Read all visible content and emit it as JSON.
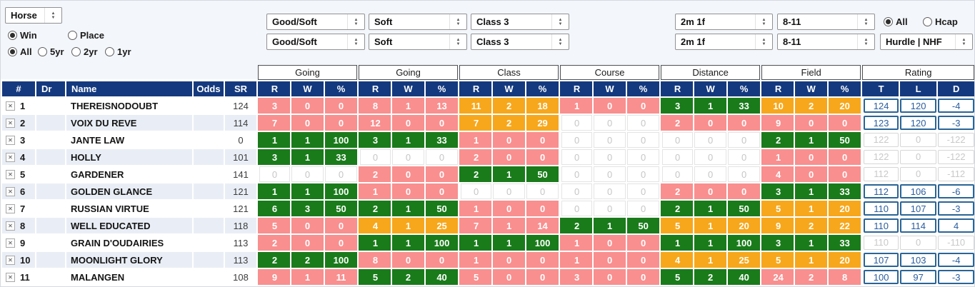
{
  "colors": {
    "navy": "#14397e",
    "green": "#1a7b1b",
    "orange": "#f7a71c",
    "pink": "#f98f8f",
    "stripe": "#e9eef6"
  },
  "toolbar": {
    "entity_select": "Horse",
    "bet_type": {
      "win": "Win",
      "place": "Place",
      "selected": "Win"
    },
    "age": {
      "all": "All",
      "y5": "5yr",
      "y2": "2yr",
      "y1": "1yr",
      "selected": "All"
    },
    "row1": {
      "going_a": "Good/Soft",
      "going_b": "Soft",
      "class": "Class 3",
      "distance": "2m 1f",
      "field": "8-11"
    },
    "row2": {
      "going_a": "Good/Soft",
      "going_b": "Soft",
      "class": "Class 3",
      "distance": "2m 1f",
      "field": "8-11",
      "race_type": "Hurdle | NHF"
    },
    "scope": {
      "all": "All",
      "hcap": "Hcap",
      "selected": "All"
    }
  },
  "table": {
    "group_headers": [
      "Going",
      "Going",
      "Class",
      "Course",
      "Distance",
      "Field",
      "Rating"
    ],
    "left_headers": {
      "num": "#",
      "dr": "Dr",
      "name": "Name",
      "odds": "Odds",
      "sr": "SR"
    },
    "stat_subheaders": [
      "R",
      "W",
      "%"
    ],
    "rating_subheaders": [
      "T",
      "L",
      "D"
    ],
    "remove_icon": "✕",
    "rows": [
      {
        "num": "1",
        "dr": "",
        "name": "THEREISNODOUBT",
        "odds": "",
        "sr": "124",
        "stats": [
          [
            3,
            0,
            0,
            "p"
          ],
          [
            8,
            1,
            13,
            "p"
          ],
          [
            11,
            2,
            18,
            "o"
          ],
          [
            1,
            0,
            0,
            "p"
          ],
          [
            3,
            1,
            33,
            "g"
          ],
          [
            10,
            2,
            20,
            "o"
          ]
        ],
        "rating": {
          "t": 124,
          "l": 120,
          "d": -4,
          "active": true
        }
      },
      {
        "num": "2",
        "dr": "",
        "name": "VOIX DU REVE",
        "odds": "",
        "sr": "114",
        "stats": [
          [
            7,
            0,
            0,
            "p"
          ],
          [
            12,
            0,
            0,
            "p"
          ],
          [
            7,
            2,
            29,
            "o"
          ],
          [
            0,
            0,
            0,
            "e"
          ],
          [
            2,
            0,
            0,
            "p"
          ],
          [
            9,
            0,
            0,
            "p"
          ]
        ],
        "rating": {
          "t": 123,
          "l": 120,
          "d": -3,
          "active": true
        }
      },
      {
        "num": "3",
        "dr": "",
        "name": "JANTE LAW",
        "odds": "",
        "sr": "0",
        "stats": [
          [
            1,
            1,
            100,
            "g"
          ],
          [
            3,
            1,
            33,
            "g"
          ],
          [
            1,
            0,
            0,
            "p"
          ],
          [
            0,
            0,
            0,
            "e"
          ],
          [
            0,
            0,
            0,
            "e"
          ],
          [
            2,
            1,
            50,
            "g"
          ]
        ],
        "rating": {
          "t": 122,
          "l": 0,
          "d": -122,
          "active": false
        }
      },
      {
        "num": "4",
        "dr": "",
        "name": "HOLLY",
        "odds": "",
        "sr": "101",
        "stats": [
          [
            3,
            1,
            33,
            "g"
          ],
          [
            0,
            0,
            0,
            "e"
          ],
          [
            2,
            0,
            0,
            "p"
          ],
          [
            0,
            0,
            0,
            "e"
          ],
          [
            0,
            0,
            0,
            "e"
          ],
          [
            1,
            0,
            0,
            "p"
          ]
        ],
        "rating": {
          "t": 122,
          "l": 0,
          "d": -122,
          "active": false
        }
      },
      {
        "num": "5",
        "dr": "",
        "name": "GARDENER",
        "odds": "",
        "sr": "141",
        "stats": [
          [
            0,
            0,
            0,
            "e"
          ],
          [
            2,
            0,
            0,
            "p"
          ],
          [
            2,
            1,
            50,
            "g"
          ],
          [
            0,
            0,
            0,
            "e"
          ],
          [
            0,
            0,
            0,
            "e"
          ],
          [
            4,
            0,
            0,
            "p"
          ]
        ],
        "rating": {
          "t": 112,
          "l": 0,
          "d": -112,
          "active": false
        }
      },
      {
        "num": "6",
        "dr": "",
        "name": "GOLDEN GLANCE",
        "odds": "",
        "sr": "121",
        "stats": [
          [
            1,
            1,
            100,
            "g"
          ],
          [
            1,
            0,
            0,
            "p"
          ],
          [
            0,
            0,
            0,
            "e"
          ],
          [
            0,
            0,
            0,
            "e"
          ],
          [
            2,
            0,
            0,
            "p"
          ],
          [
            3,
            1,
            33,
            "g"
          ]
        ],
        "rating": {
          "t": 112,
          "l": 106,
          "d": -6,
          "active": true
        }
      },
      {
        "num": "7",
        "dr": "",
        "name": "RUSSIAN VIRTUE",
        "odds": "",
        "sr": "121",
        "stats": [
          [
            6,
            3,
            50,
            "g"
          ],
          [
            2,
            1,
            50,
            "g"
          ],
          [
            1,
            0,
            0,
            "p"
          ],
          [
            0,
            0,
            0,
            "e"
          ],
          [
            2,
            1,
            50,
            "g"
          ],
          [
            5,
            1,
            20,
            "o"
          ]
        ],
        "rating": {
          "t": 110,
          "l": 107,
          "d": -3,
          "active": true
        }
      },
      {
        "num": "8",
        "dr": "",
        "name": "WELL EDUCATED",
        "odds": "",
        "sr": "118",
        "stats": [
          [
            5,
            0,
            0,
            "p"
          ],
          [
            4,
            1,
            25,
            "o"
          ],
          [
            7,
            1,
            14,
            "p"
          ],
          [
            2,
            1,
            50,
            "g"
          ],
          [
            5,
            1,
            20,
            "o"
          ],
          [
            9,
            2,
            22,
            "o"
          ]
        ],
        "rating": {
          "t": 110,
          "l": 114,
          "d": 4,
          "active": true
        }
      },
      {
        "num": "9",
        "dr": "",
        "name": "GRAIN D'OUDAIRIES",
        "odds": "",
        "sr": "113",
        "stats": [
          [
            2,
            0,
            0,
            "p"
          ],
          [
            1,
            1,
            100,
            "g"
          ],
          [
            1,
            1,
            100,
            "g"
          ],
          [
            1,
            0,
            0,
            "p"
          ],
          [
            1,
            1,
            100,
            "g"
          ],
          [
            3,
            1,
            33,
            "g"
          ]
        ],
        "rating": {
          "t": 110,
          "l": 0,
          "d": -110,
          "active": false
        }
      },
      {
        "num": "10",
        "dr": "",
        "name": "MOONLIGHT GLORY",
        "odds": "",
        "sr": "113",
        "stats": [
          [
            2,
            2,
            100,
            "g"
          ],
          [
            8,
            0,
            0,
            "p"
          ],
          [
            1,
            0,
            0,
            "p"
          ],
          [
            1,
            0,
            0,
            "p"
          ],
          [
            4,
            1,
            25,
            "o"
          ],
          [
            5,
            1,
            20,
            "o"
          ]
        ],
        "rating": {
          "t": 107,
          "l": 103,
          "d": -4,
          "active": true
        }
      },
      {
        "num": "11",
        "dr": "",
        "name": "MALANGEN",
        "odds": "",
        "sr": "108",
        "stats": [
          [
            9,
            1,
            11,
            "p"
          ],
          [
            5,
            2,
            40,
            "g"
          ],
          [
            5,
            0,
            0,
            "p"
          ],
          [
            3,
            0,
            0,
            "p"
          ],
          [
            5,
            2,
            40,
            "g"
          ],
          [
            24,
            2,
            8,
            "p"
          ]
        ],
        "rating": {
          "t": 100,
          "l": 97,
          "d": -3,
          "active": true
        }
      }
    ]
  }
}
